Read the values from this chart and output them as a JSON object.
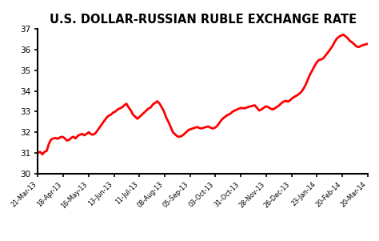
{
  "title": "U.S. DOLLAR-RUSSIAN RUBLE EXCHANGE RATE",
  "title_fontsize": 10.5,
  "title_fontweight": "bold",
  "line_color": "#FF0000",
  "line_width": 2.0,
  "background_color": "#FFFFFF",
  "ylim": [
    30,
    37
  ],
  "yticks": [
    30,
    31,
    32,
    33,
    34,
    35,
    36,
    37
  ],
  "xtick_labels": [
    "21-Mar-13",
    "18-Apr-13",
    "16-May-13",
    "13-Jun-13",
    "11-Jul-13",
    "08-Aug-13",
    "05-Sep-13",
    "03-Oct-13",
    "31-Oct-13",
    "28-Nov-13",
    "26-Dec-13",
    "23-Jan-14",
    "20-Feb-14",
    "20-Mar-14"
  ],
  "data_points": [
    [
      0,
      31.0
    ],
    [
      2,
      31.05
    ],
    [
      4,
      30.93
    ],
    [
      6,
      31.05
    ],
    [
      8,
      31.1
    ],
    [
      10,
      31.45
    ],
    [
      12,
      31.65
    ],
    [
      14,
      31.7
    ],
    [
      16,
      31.72
    ],
    [
      18,
      31.68
    ],
    [
      20,
      31.75
    ],
    [
      22,
      31.78
    ],
    [
      24,
      31.72
    ],
    [
      26,
      31.6
    ],
    [
      28,
      31.62
    ],
    [
      30,
      31.72
    ],
    [
      32,
      31.78
    ],
    [
      34,
      31.7
    ],
    [
      36,
      31.82
    ],
    [
      38,
      31.88
    ],
    [
      40,
      31.92
    ],
    [
      42,
      31.85
    ],
    [
      44,
      31.92
    ],
    [
      46,
      32.0
    ],
    [
      48,
      31.9
    ],
    [
      50,
      31.88
    ],
    [
      52,
      31.95
    ],
    [
      54,
      32.1
    ],
    [
      56,
      32.25
    ],
    [
      58,
      32.4
    ],
    [
      60,
      32.55
    ],
    [
      62,
      32.7
    ],
    [
      64,
      32.8
    ],
    [
      66,
      32.85
    ],
    [
      68,
      32.95
    ],
    [
      70,
      33.0
    ],
    [
      72,
      33.1
    ],
    [
      74,
      33.15
    ],
    [
      76,
      33.2
    ],
    [
      78,
      33.3
    ],
    [
      80,
      33.38
    ],
    [
      82,
      33.2
    ],
    [
      84,
      33.05
    ],
    [
      86,
      32.85
    ],
    [
      88,
      32.75
    ],
    [
      90,
      32.65
    ],
    [
      92,
      32.75
    ],
    [
      94,
      32.85
    ],
    [
      96,
      32.95
    ],
    [
      98,
      33.05
    ],
    [
      100,
      33.15
    ],
    [
      102,
      33.2
    ],
    [
      104,
      33.35
    ],
    [
      106,
      33.42
    ],
    [
      108,
      33.5
    ],
    [
      110,
      33.38
    ],
    [
      112,
      33.2
    ],
    [
      114,
      33.0
    ],
    [
      116,
      32.7
    ],
    [
      118,
      32.5
    ],
    [
      120,
      32.25
    ],
    [
      122,
      32.0
    ],
    [
      124,
      31.9
    ],
    [
      126,
      31.8
    ],
    [
      128,
      31.78
    ],
    [
      130,
      31.82
    ],
    [
      132,
      31.9
    ],
    [
      134,
      32.0
    ],
    [
      136,
      32.1
    ],
    [
      138,
      32.15
    ],
    [
      140,
      32.18
    ],
    [
      142,
      32.22
    ],
    [
      144,
      32.25
    ],
    [
      146,
      32.2
    ],
    [
      148,
      32.18
    ],
    [
      150,
      32.22
    ],
    [
      152,
      32.25
    ],
    [
      154,
      32.28
    ],
    [
      156,
      32.22
    ],
    [
      158,
      32.18
    ],
    [
      160,
      32.22
    ],
    [
      162,
      32.3
    ],
    [
      164,
      32.45
    ],
    [
      166,
      32.6
    ],
    [
      168,
      32.7
    ],
    [
      170,
      32.78
    ],
    [
      172,
      32.85
    ],
    [
      174,
      32.9
    ],
    [
      176,
      33.0
    ],
    [
      178,
      33.05
    ],
    [
      180,
      33.1
    ],
    [
      182,
      33.15
    ],
    [
      184,
      33.18
    ],
    [
      186,
      33.15
    ],
    [
      188,
      33.18
    ],
    [
      190,
      33.22
    ],
    [
      192,
      33.25
    ],
    [
      194,
      33.28
    ],
    [
      196,
      33.3
    ],
    [
      198,
      33.18
    ],
    [
      200,
      33.05
    ],
    [
      202,
      33.1
    ],
    [
      204,
      33.18
    ],
    [
      206,
      33.25
    ],
    [
      208,
      33.22
    ],
    [
      210,
      33.15
    ],
    [
      212,
      33.1
    ],
    [
      214,
      33.15
    ],
    [
      216,
      33.22
    ],
    [
      218,
      33.3
    ],
    [
      220,
      33.4
    ],
    [
      222,
      33.48
    ],
    [
      224,
      33.52
    ],
    [
      226,
      33.48
    ],
    [
      228,
      33.55
    ],
    [
      230,
      33.65
    ],
    [
      232,
      33.72
    ],
    [
      234,
      33.78
    ],
    [
      236,
      33.85
    ],
    [
      238,
      33.95
    ],
    [
      240,
      34.1
    ],
    [
      242,
      34.3
    ],
    [
      244,
      34.55
    ],
    [
      246,
      34.8
    ],
    [
      248,
      35.0
    ],
    [
      250,
      35.2
    ],
    [
      252,
      35.38
    ],
    [
      254,
      35.5
    ],
    [
      256,
      35.52
    ],
    [
      258,
      35.58
    ],
    [
      260,
      35.72
    ],
    [
      262,
      35.85
    ],
    [
      264,
      36.0
    ],
    [
      266,
      36.15
    ],
    [
      268,
      36.35
    ],
    [
      270,
      36.52
    ],
    [
      272,
      36.62
    ],
    [
      274,
      36.68
    ],
    [
      276,
      36.72
    ],
    [
      278,
      36.65
    ],
    [
      280,
      36.55
    ],
    [
      282,
      36.42
    ],
    [
      284,
      36.35
    ],
    [
      286,
      36.25
    ],
    [
      288,
      36.15
    ],
    [
      290,
      36.12
    ],
    [
      292,
      36.18
    ],
    [
      294,
      36.22
    ],
    [
      296,
      36.25
    ],
    [
      298,
      36.28
    ]
  ]
}
